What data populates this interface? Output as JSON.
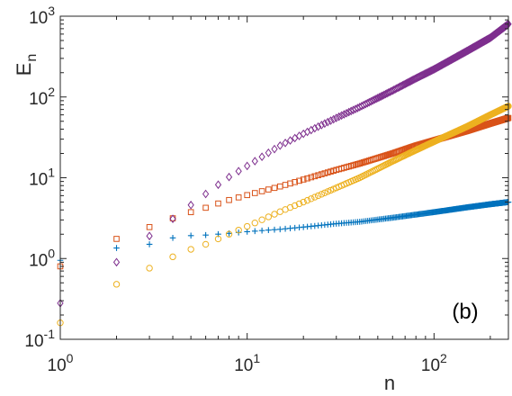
{
  "chart_data": {
    "type": "scatter",
    "title": "",
    "xlabel": "n",
    "ylabel": "E_n",
    "xscale": "log",
    "yscale": "log",
    "xlim": [
      1,
      250
    ],
    "ylim": [
      0.1,
      1000
    ],
    "grid": false,
    "annotation": "(b)",
    "x_ticks": [
      {
        "base": "10",
        "exp": "0",
        "value": 1
      },
      {
        "base": "10",
        "exp": "1",
        "value": 10
      },
      {
        "base": "10",
        "exp": "2",
        "value": 100
      }
    ],
    "y_ticks": [
      {
        "base": "10",
        "exp": "-1",
        "value": 0.1
      },
      {
        "base": "10",
        "exp": "0",
        "value": 1
      },
      {
        "base": "10",
        "exp": "1",
        "value": 10
      },
      {
        "base": "10",
        "exp": "2",
        "value": 100
      },
      {
        "base": "10",
        "exp": "3",
        "value": 1000
      }
    ],
    "series": [
      {
        "marker": "plus",
        "color": "#0072BD",
        "points": [
          [
            1,
            0.95
          ],
          [
            2,
            1.35
          ],
          [
            3,
            1.5
          ],
          [
            4,
            1.8
          ],
          [
            5,
            1.92
          ],
          [
            6,
            1.95
          ],
          [
            7,
            2.0
          ],
          [
            8,
            2.05
          ],
          [
            10,
            2.15
          ],
          [
            15,
            2.3
          ],
          [
            20,
            2.45
          ],
          [
            30,
            2.7
          ],
          [
            40,
            2.85
          ],
          [
            60,
            3.2
          ],
          [
            80,
            3.5
          ],
          [
            100,
            3.75
          ],
          [
            150,
            4.3
          ],
          [
            200,
            4.7
          ],
          [
            250,
            5.0
          ]
        ]
      },
      {
        "marker": "square",
        "color": "#D95319",
        "points": [
          [
            1,
            0.8
          ],
          [
            2,
            1.75
          ],
          [
            3,
            2.45
          ],
          [
            4,
            3.15
          ],
          [
            5,
            3.75
          ],
          [
            6,
            4.25
          ],
          [
            7,
            4.8
          ],
          [
            8,
            5.3
          ],
          [
            10,
            6.1
          ],
          [
            15,
            7.8
          ],
          [
            20,
            9.5
          ],
          [
            30,
            12.5
          ],
          [
            40,
            15.0
          ],
          [
            60,
            20.0
          ],
          [
            80,
            25.0
          ],
          [
            100,
            29.0
          ],
          [
            150,
            38.0
          ],
          [
            200,
            47.0
          ],
          [
            250,
            55.0
          ]
        ]
      },
      {
        "marker": "circle",
        "color": "#EDB120",
        "points": [
          [
            1,
            0.16
          ],
          [
            2,
            0.48
          ],
          [
            3,
            0.76
          ],
          [
            4,
            1.05
          ],
          [
            5,
            1.3
          ],
          [
            6,
            1.5
          ],
          [
            7,
            1.75
          ],
          [
            8,
            2.0
          ],
          [
            10,
            2.5
          ],
          [
            15,
            3.8
          ],
          [
            20,
            5.0
          ],
          [
            30,
            7.5
          ],
          [
            40,
            10.0
          ],
          [
            60,
            16.0
          ],
          [
            80,
            22.0
          ],
          [
            100,
            28.0
          ],
          [
            150,
            43.0
          ],
          [
            200,
            60.0
          ],
          [
            250,
            77.0
          ]
        ]
      },
      {
        "marker": "diamond",
        "color": "#7E2F8E",
        "points": [
          [
            1,
            0.28
          ],
          [
            2,
            0.9
          ],
          [
            3,
            1.9
          ],
          [
            4,
            3.1
          ],
          [
            5,
            4.6
          ],
          [
            6,
            6.3
          ],
          [
            7,
            8.2
          ],
          [
            8,
            10.2
          ],
          [
            10,
            14.0
          ],
          [
            15,
            25.0
          ],
          [
            20,
            35.0
          ],
          [
            30,
            55.0
          ],
          [
            40,
            75.0
          ],
          [
            60,
            120.0
          ],
          [
            80,
            170.0
          ],
          [
            100,
            220.0
          ],
          [
            150,
            370.0
          ],
          [
            200,
            540.0
          ],
          [
            250,
            800.0
          ]
        ]
      }
    ]
  }
}
